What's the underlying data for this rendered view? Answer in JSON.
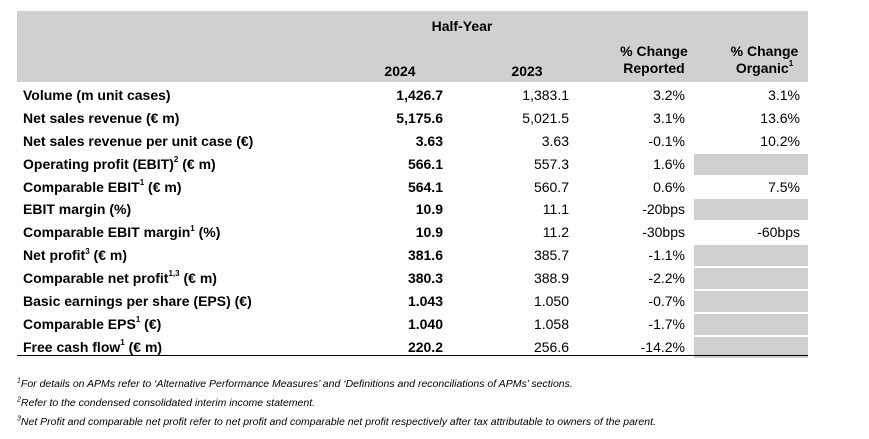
{
  "header": {
    "period": "Half-Year",
    "col_2024": "2024",
    "col_2023": "2023",
    "change_reported_l1": "% Change",
    "change_reported_l2": "Reported",
    "change_organic_l1": "% Change",
    "change_organic_l2": "Organic",
    "change_organic_sup": "1"
  },
  "rows": [
    {
      "label": "Volume (m unit cases)",
      "sup": "",
      "suffix": "",
      "y2024": "1,426.7",
      "y2023": "1,383.1",
      "reported": "3.2%",
      "organic": "3.1%"
    },
    {
      "label": "Net sales revenue (€ m)",
      "sup": "",
      "suffix": "",
      "y2024": "5,175.6",
      "y2023": "5,021.5",
      "reported": "3.1%",
      "organic": "13.6%"
    },
    {
      "label": "Net sales revenue per unit case (€)",
      "sup": "",
      "suffix": "",
      "y2024": "3.63",
      "y2023": "3.63",
      "reported": "-0.1%",
      "organic": "10.2%"
    },
    {
      "label": "Operating profit (EBIT)",
      "sup": "2",
      "suffix": " (€ m)",
      "y2024": "566.1",
      "y2023": "557.3",
      "reported": "1.6%",
      "organic": ""
    },
    {
      "label": "Comparable EBIT",
      "sup": "1",
      "suffix": " (€ m)",
      "y2024": "564.1",
      "y2023": "560.7",
      "reported": "0.6%",
      "organic": "7.5%"
    },
    {
      "label": "EBIT margin (%)",
      "sup": "",
      "suffix": "",
      "y2024": "10.9",
      "y2023": "11.1",
      "reported": "-20bps",
      "organic": ""
    },
    {
      "label": "Comparable EBIT margin",
      "sup": "1",
      "suffix": " (%)",
      "y2024": "10.9",
      "y2023": "11.2",
      "reported": "-30bps",
      "organic": "-60bps"
    },
    {
      "label": "Net profit",
      "sup": "3",
      "suffix": " (€ m)",
      "y2024": "381.6",
      "y2023": "385.7",
      "reported": "-1.1%",
      "organic": ""
    },
    {
      "label": "Comparable net profit",
      "sup": "1,3",
      "suffix": " (€ m)",
      "y2024": "380.3",
      "y2023": "388.9",
      "reported": "-2.2%",
      "organic": ""
    },
    {
      "label": "Basic earnings per share (EPS) (€)",
      "sup": "",
      "suffix": "",
      "y2024": "1.043",
      "y2023": "1.050",
      "reported": "-0.7%",
      "organic": ""
    },
    {
      "label": "Comparable EPS",
      "sup": "1",
      "suffix": " (€)",
      "y2024": "1.040",
      "y2023": "1.058",
      "reported": "-1.7%",
      "organic": ""
    },
    {
      "label": "Free cash flow",
      "sup": "1",
      "suffix": " (€ m)",
      "y2024": "220.2",
      "y2023": "256.6",
      "reported": "-14.2%",
      "organic": ""
    }
  ],
  "footnotes": [
    {
      "num": "1",
      "text": "For details on APMs refer to ‘Alternative Performance Measures’ and ‘Definitions and reconciliations of APMs’ sections."
    },
    {
      "num": "2",
      "text": "Refer to the condensed consolidated interim income statement."
    },
    {
      "num": "3",
      "text": "Net Profit and comparable net profit refer to net profit and comparable net profit respectively after tax attributable to owners of the parent."
    }
  ],
  "colors": {
    "header_band": "#d0d0d0",
    "empty_cell": "#d0d0d0"
  }
}
